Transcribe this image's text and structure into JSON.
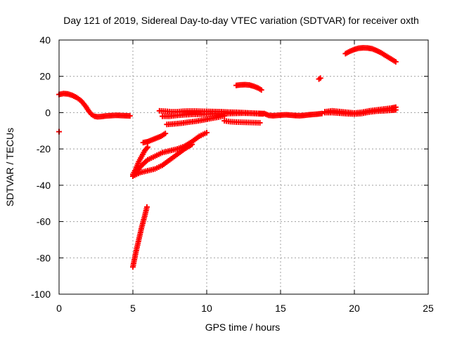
{
  "chart_data": {
    "type": "scatter",
    "title": "Day 121 of 2019, Sidereal Day-to-day VTEC variation (SDTVAR) for receiver oxth",
    "xlabel": "GPS time / hours",
    "ylabel": "SDTVAR / TECUs",
    "xlim": [
      0,
      25
    ],
    "ylim": [
      -100,
      40
    ],
    "xticks": [
      "0",
      "5",
      "10",
      "15",
      "20",
      "25"
    ],
    "yticks": [
      "40",
      "20",
      "0",
      "-20",
      "-40",
      "-60",
      "-80",
      "-100"
    ],
    "xtick_values": [
      0,
      5,
      10,
      15,
      20,
      25
    ],
    "ytick_values": [
      40,
      20,
      0,
      -20,
      -40,
      -60,
      -80,
      -100
    ],
    "grid": true,
    "marker": "plus",
    "color": "#ff0000",
    "series": [
      {
        "points": [
          [
            0,
            10
          ],
          [
            0.3,
            10.5
          ],
          [
            0.6,
            10.3
          ],
          [
            0.9,
            9.5
          ],
          [
            1.2,
            8.3
          ],
          [
            1.5,
            6.5
          ],
          [
            1.8,
            3.5
          ],
          [
            2,
            1
          ],
          [
            2.2,
            -1
          ],
          [
            2.4,
            -2
          ],
          [
            2.6,
            -2.3
          ],
          [
            2.8,
            -2.2
          ],
          [
            3,
            -2
          ],
          [
            3.2,
            -1.8
          ],
          [
            3.4,
            -1.7
          ],
          [
            3.6,
            -1.6
          ],
          [
            3.8,
            -1.5
          ],
          [
            4,
            -1.5
          ],
          [
            4.2,
            -1.6
          ],
          [
            4.5,
            -1.7
          ],
          [
            4.8,
            -1.8
          ],
          [
            0,
            -10.5
          ]
        ]
      },
      {
        "points": [
          [
            5,
            -85
          ],
          [
            5.2,
            -77
          ],
          [
            5.4,
            -70
          ],
          [
            5.6,
            -63
          ],
          [
            5.8,
            -57
          ],
          [
            5.95,
            -52
          ]
        ]
      },
      {
        "points": [
          [
            5,
            -34
          ],
          [
            5.2,
            -31
          ],
          [
            5.4,
            -27
          ],
          [
            5.6,
            -24
          ],
          [
            5.8,
            -21
          ],
          [
            6,
            -19
          ]
        ]
      },
      {
        "points": [
          [
            5,
            -35
          ],
          [
            5.3,
            -32
          ],
          [
            5.6,
            -29
          ],
          [
            6,
            -26
          ],
          [
            6.5,
            -24
          ],
          [
            7,
            -22
          ],
          [
            7.5,
            -21
          ],
          [
            8,
            -20
          ],
          [
            8.5,
            -18.5
          ],
          [
            9,
            -16
          ],
          [
            9.5,
            -13
          ],
          [
            10,
            -11
          ]
        ]
      },
      {
        "points": [
          [
            5,
            -35
          ],
          [
            5.5,
            -33
          ],
          [
            6,
            -32
          ],
          [
            6.5,
            -31
          ],
          [
            7,
            -29
          ],
          [
            7.5,
            -26
          ],
          [
            8,
            -23
          ],
          [
            8.5,
            -20
          ],
          [
            9,
            -17.5
          ]
        ]
      },
      {
        "points": [
          [
            5.7,
            -16.5
          ],
          [
            6,
            -16
          ],
          [
            6.3,
            -15
          ],
          [
            6.6,
            -14
          ],
          [
            6.9,
            -13
          ],
          [
            7.2,
            -11.5
          ]
        ]
      },
      {
        "points": [
          [
            6.8,
            1
          ],
          [
            7.2,
            0.8
          ],
          [
            7.6,
            0.5
          ],
          [
            8,
            0.5
          ],
          [
            8.4,
            0.8
          ],
          [
            8.8,
            0.9
          ],
          [
            9.2,
            0.9
          ],
          [
            9.6,
            0.8
          ],
          [
            10,
            0.7
          ],
          [
            10.5,
            0.6
          ],
          [
            11,
            0.5
          ],
          [
            11.5,
            0.3
          ],
          [
            12,
            0.2
          ],
          [
            12.5,
            0
          ],
          [
            13,
            -0.2
          ],
          [
            13.5,
            -0.4
          ],
          [
            13.8,
            -0.5
          ]
        ]
      },
      {
        "points": [
          [
            7,
            -2
          ],
          [
            7.5,
            -2
          ],
          [
            8,
            -1.5
          ],
          [
            8.5,
            -1.2
          ],
          [
            9,
            -1
          ],
          [
            9.5,
            -0.9
          ],
          [
            10,
            -0.8
          ],
          [
            10.5,
            -0.7
          ],
          [
            11,
            -0.6
          ],
          [
            11.5,
            -0.5
          ],
          [
            12,
            -0.4
          ],
          [
            12.5,
            -0.3
          ],
          [
            13,
            -0.4
          ],
          [
            13.5,
            -0.6
          ],
          [
            13.8,
            -0.7
          ]
        ]
      },
      {
        "points": [
          [
            7.3,
            -6.5
          ],
          [
            7.8,
            -6.2
          ],
          [
            8.3,
            -5.8
          ],
          [
            8.8,
            -5.2
          ],
          [
            9.3,
            -4.7
          ],
          [
            9.8,
            -4
          ],
          [
            10.3,
            -3.2
          ],
          [
            10.8,
            -2.5
          ],
          [
            11.2,
            -1.8
          ]
        ]
      },
      {
        "points": [
          [
            11.2,
            -4.5
          ],
          [
            11.6,
            -5
          ],
          [
            12,
            -5.2
          ],
          [
            12.4,
            -5.3
          ],
          [
            12.8,
            -5.4
          ],
          [
            13.2,
            -5.5
          ],
          [
            13.6,
            -5.6
          ]
        ]
      },
      {
        "points": [
          [
            12,
            15
          ],
          [
            12.3,
            15.3
          ],
          [
            12.6,
            15.4
          ],
          [
            12.9,
            15.2
          ],
          [
            13.2,
            14.5
          ],
          [
            13.5,
            13.5
          ],
          [
            13.7,
            12.5
          ]
        ]
      },
      {
        "points": [
          [
            13.9,
            -0.5
          ],
          [
            14.2,
            -1.5
          ],
          [
            14.5,
            -1.7
          ],
          [
            14.8,
            -1.5
          ],
          [
            15.1,
            -1.3
          ],
          [
            15.4,
            -1.2
          ],
          [
            15.7,
            -1.4
          ],
          [
            16,
            -1.6
          ],
          [
            16.3,
            -1.7
          ],
          [
            16.6,
            -1.5
          ],
          [
            16.9,
            -1.2
          ],
          [
            17.2,
            -1
          ],
          [
            17.5,
            -0.8
          ],
          [
            17.8,
            -0.5
          ]
        ]
      },
      {
        "points": [
          [
            17.6,
            18.5
          ],
          [
            17.7,
            19
          ]
        ]
      },
      {
        "points": [
          [
            18,
            0.5
          ],
          [
            18.5,
            1
          ],
          [
            19,
            0.6
          ],
          [
            19.5,
            0.2
          ],
          [
            20,
            -0.2
          ],
          [
            20.5,
            0.2
          ],
          [
            21,
            1
          ],
          [
            21.5,
            1.5
          ],
          [
            22,
            2
          ],
          [
            22.5,
            2.5
          ],
          [
            22.8,
            3
          ]
        ]
      },
      {
        "points": [
          [
            18,
            0
          ],
          [
            18.5,
            0
          ],
          [
            19,
            -0.3
          ],
          [
            19.5,
            -0.6
          ],
          [
            20,
            -0.8
          ],
          [
            20.5,
            -0.5
          ],
          [
            21,
            0.3
          ],
          [
            21.5,
            0.8
          ],
          [
            22,
            1
          ],
          [
            22.5,
            1.3
          ],
          [
            22.8,
            1.5
          ]
        ]
      },
      {
        "points": [
          [
            19.4,
            32.5
          ],
          [
            19.7,
            33.8
          ],
          [
            20,
            34.8
          ],
          [
            20.3,
            35.5
          ],
          [
            20.6,
            35.7
          ],
          [
            20.9,
            35.6
          ],
          [
            21.2,
            35.2
          ],
          [
            21.5,
            34.2
          ],
          [
            21.8,
            33
          ],
          [
            22.1,
            31.5
          ],
          [
            22.4,
            30
          ],
          [
            22.8,
            28
          ]
        ]
      }
    ]
  }
}
